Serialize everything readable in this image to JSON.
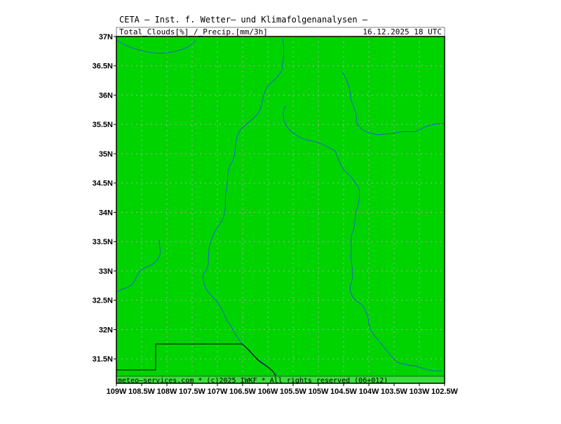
{
  "header": {
    "line1": "CETA — Inst. f. Wetter— und Klimafolgenanalysen —",
    "parameter": "Total_Clouds[%]_/_Precip.[mm/3h]",
    "datetime": "16.12.2025  18 UTC"
  },
  "footer": {
    "credit": "meteo—services.com * (c)2025 IWKF * All rights reserved (06+012)"
  },
  "map": {
    "fill_color": "#00d400",
    "river_color": "#1e64c8",
    "border_color": "#000000",
    "grid": "dotted",
    "lon_ticks": [
      "109W",
      "108.5W",
      "108W",
      "107.5W",
      "107W",
      "106.5W",
      "106W",
      "105.5W",
      "105W",
      "104.5W",
      "104W",
      "103.5W",
      "103W",
      "102.5W"
    ],
    "lat_ticks": [
      "37N",
      "36.5N",
      "36N",
      "35.5N",
      "35N",
      "34.5N",
      "34N",
      "33.5N",
      "33N",
      "32.5N",
      "32N",
      "31.5N"
    ],
    "lon_range": [
      -109,
      -102.5
    ],
    "lat_range": [
      31.0833,
      37
    ]
  }
}
